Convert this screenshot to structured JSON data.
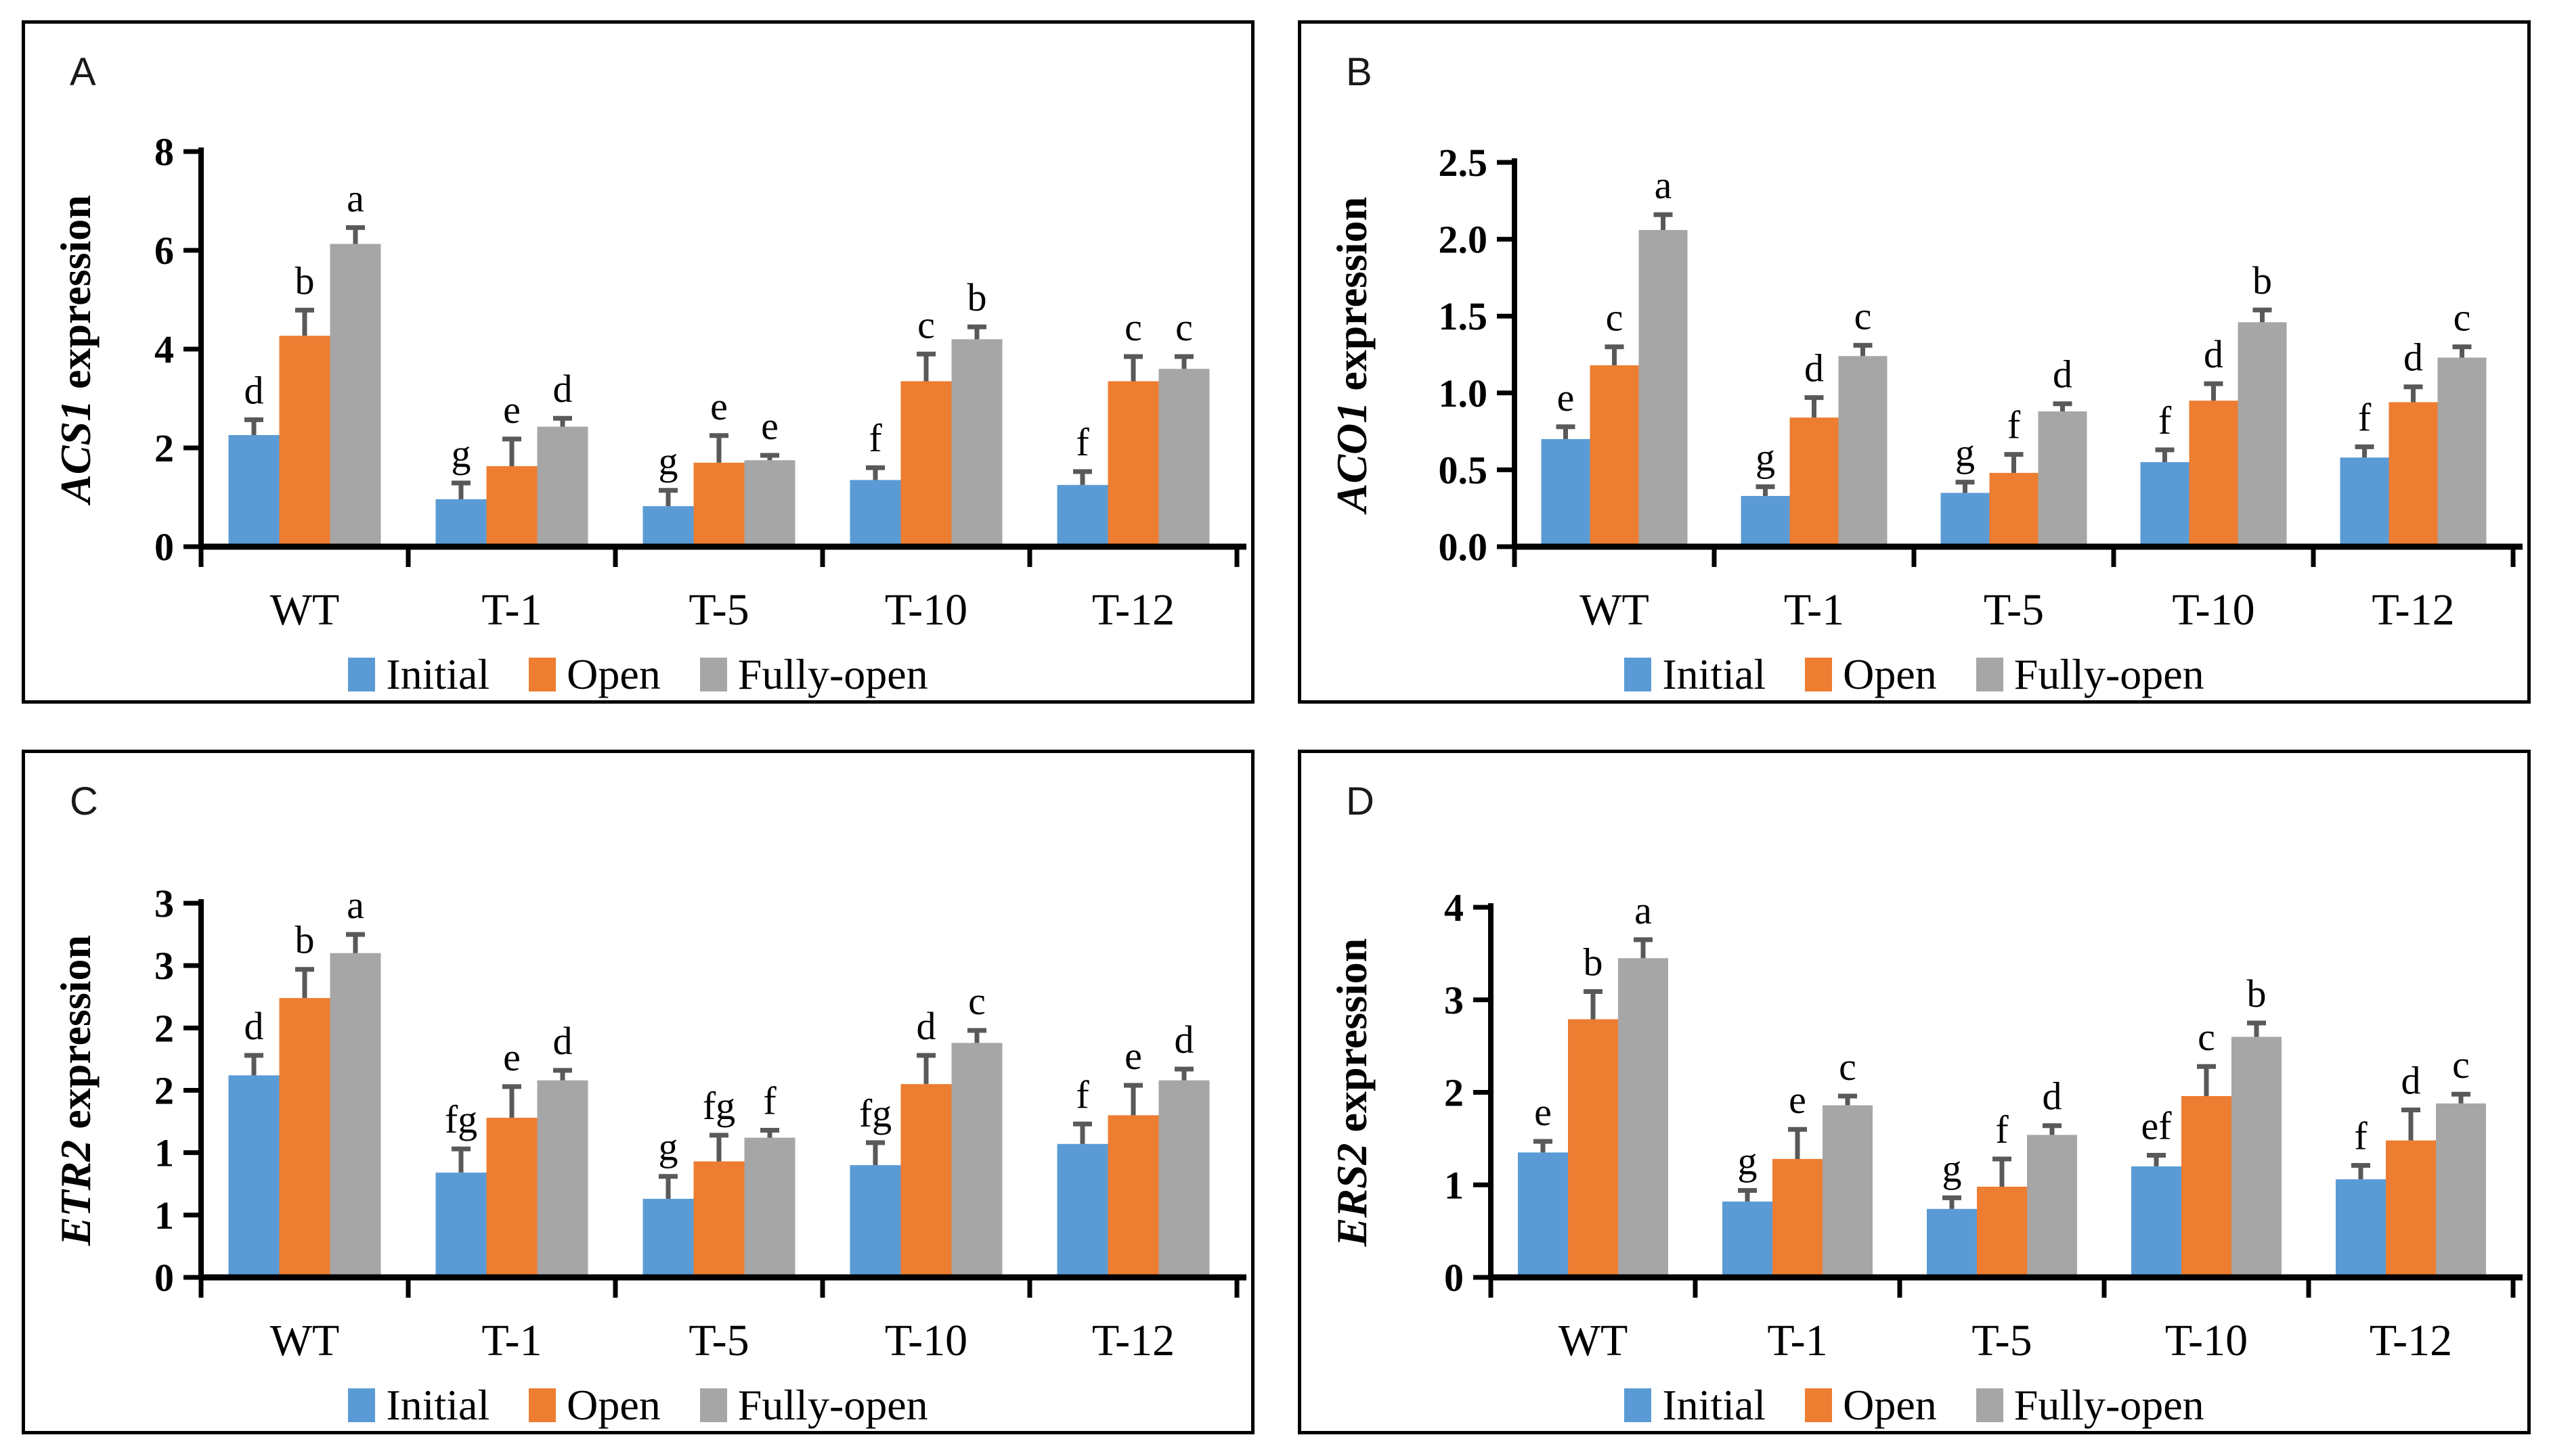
{
  "figure": {
    "description": "Four-panel grouped bar chart figure of gene expression in WT and transgenic lines",
    "panel_labels": [
      "A",
      "B",
      "C",
      "D"
    ]
  },
  "colors": {
    "initial_blue": "#5B9BD5",
    "open_orange": "#ED7D31",
    "fully_open_gray": "#A6A6A6",
    "error_bar": "#595959",
    "axis_black": "#000000"
  },
  "legend": {
    "items": [
      {
        "label": "Initial",
        "color": "#5B9BD5"
      },
      {
        "label": "Open",
        "color": "#ED7D31"
      },
      {
        "label": "Fully-open",
        "color": "#A6A6A6"
      }
    ],
    "position": "bottom"
  },
  "chart_data": [
    {
      "type": "bar",
      "panel_label": "A",
      "title": "",
      "xlabel": "",
      "ylabel_gene": "ACS1",
      "ylabel_rest": " expression",
      "categories": [
        "WT",
        "T-1",
        "T-5",
        "T-10",
        "T-12"
      ],
      "ylim": [
        0,
        8
      ],
      "grid": false,
      "legend_position": "bottom",
      "yticks": [
        {
          "value": 0,
          "label": "0"
        },
        {
          "value": 2,
          "label": "2"
        },
        {
          "value": 4,
          "label": "4"
        },
        {
          "value": 6,
          "label": "6"
        },
        {
          "value": 8,
          "label": "8"
        }
      ],
      "series": [
        {
          "name": "Initial",
          "color": "#5B9BD5",
          "values": [
            2.26,
            0.96,
            0.82,
            1.35,
            1.25
          ],
          "errors": [
            0.31,
            0.33,
            0.32,
            0.25,
            0.27
          ],
          "letters": [
            "d",
            "g",
            "g",
            "f",
            "f"
          ]
        },
        {
          "name": "Open",
          "color": "#ED7D31",
          "values": [
            4.27,
            1.63,
            1.7,
            3.35,
            3.35
          ],
          "errors": [
            0.52,
            0.55,
            0.55,
            0.55,
            0.5
          ],
          "letters": [
            "b",
            "e",
            "e",
            "c",
            "c"
          ]
        },
        {
          "name": "Fully-open",
          "color": "#A6A6A6",
          "values": [
            6.13,
            2.43,
            1.75,
            4.2,
            3.6
          ],
          "errors": [
            0.33,
            0.17,
            0.1,
            0.25,
            0.25
          ],
          "letters": [
            "a",
            "d",
            "e",
            "b",
            "c"
          ]
        }
      ]
    },
    {
      "type": "bar",
      "panel_label": "B",
      "title": "",
      "xlabel": "",
      "ylabel_gene": "ACO1",
      "ylabel_rest": " expression",
      "categories": [
        "WT",
        "T-1",
        "T-5",
        "T-10",
        "T-12"
      ],
      "ylim": [
        0,
        2.5
      ],
      "grid": false,
      "legend_position": "bottom",
      "yticks": [
        {
          "value": 0,
          "label": "0.0"
        },
        {
          "value": 0.5,
          "label": "0.5"
        },
        {
          "value": 1.0,
          "label": "1.0"
        },
        {
          "value": 1.5,
          "label": "1.5"
        },
        {
          "value": 2.0,
          "label": "2.0"
        },
        {
          "value": 2.5,
          "label": "2.5"
        }
      ],
      "series": [
        {
          "name": "Initial",
          "color": "#5B9BD5",
          "values": [
            0.7,
            0.33,
            0.35,
            0.55,
            0.58
          ],
          "errors": [
            0.08,
            0.06,
            0.07,
            0.08,
            0.07
          ],
          "letters": [
            "e",
            "g",
            "g",
            "f",
            "f"
          ]
        },
        {
          "name": "Open",
          "color": "#ED7D31",
          "values": [
            1.18,
            0.84,
            0.48,
            0.95,
            0.94
          ],
          "errors": [
            0.12,
            0.13,
            0.12,
            0.11,
            0.1
          ],
          "letters": [
            "c",
            "d",
            "f",
            "d",
            "d"
          ]
        },
        {
          "name": "Fully-open",
          "color": "#A6A6A6",
          "values": [
            2.06,
            1.24,
            0.88,
            1.46,
            1.23
          ],
          "errors": [
            0.1,
            0.07,
            0.05,
            0.08,
            0.07
          ],
          "letters": [
            "a",
            "c",
            "d",
            "b",
            "c"
          ]
        }
      ]
    },
    {
      "type": "bar",
      "panel_label": "C",
      "title": "",
      "xlabel": "",
      "ylabel_gene": "ETR2",
      "ylabel_rest": " expression",
      "categories": [
        "WT",
        "T-1",
        "T-5",
        "T-10",
        "T-12"
      ],
      "ylim": [
        0,
        3
      ],
      "grid": false,
      "legend_position": "bottom",
      "yticks": [
        {
          "value": 0,
          "label": "0"
        },
        {
          "value": 0.5,
          "label": "1"
        },
        {
          "value": 1.0,
          "label": "1"
        },
        {
          "value": 1.5,
          "label": "2"
        },
        {
          "value": 2.0,
          "label": "2"
        },
        {
          "value": 2.5,
          "label": "3"
        },
        {
          "value": 3.0,
          "label": "3"
        }
      ],
      "series": [
        {
          "name": "Initial",
          "color": "#5B9BD5",
          "values": [
            1.62,
            0.84,
            0.63,
            0.9,
            1.07
          ],
          "errors": [
            0.16,
            0.19,
            0.18,
            0.18,
            0.16
          ],
          "letters": [
            "d",
            "fg",
            "g",
            "fg",
            "f"
          ]
        },
        {
          "name": "Open",
          "color": "#ED7D31",
          "values": [
            2.24,
            1.28,
            0.93,
            1.55,
            1.3
          ],
          "errors": [
            0.23,
            0.25,
            0.21,
            0.23,
            0.24
          ],
          "letters": [
            "b",
            "e",
            "fg",
            "d",
            "e"
          ]
        },
        {
          "name": "Fully-open",
          "color": "#A6A6A6",
          "values": [
            2.6,
            1.58,
            1.12,
            1.88,
            1.58
          ],
          "errors": [
            0.15,
            0.08,
            0.06,
            0.1,
            0.09
          ],
          "letters": [
            "a",
            "d",
            "f",
            "c",
            "d"
          ]
        }
      ]
    },
    {
      "type": "bar",
      "panel_label": "D",
      "title": "",
      "xlabel": "",
      "ylabel_gene": "ERS2",
      "ylabel_rest": " expression",
      "categories": [
        "WT",
        "T-1",
        "T-5",
        "T-10",
        "T-12"
      ],
      "ylim": [
        0,
        4
      ],
      "grid": false,
      "legend_position": "bottom",
      "yticks": [
        {
          "value": 0,
          "label": "0"
        },
        {
          "value": 1,
          "label": "1"
        },
        {
          "value": 2,
          "label": "2"
        },
        {
          "value": 3,
          "label": "3"
        },
        {
          "value": 4,
          "label": "4"
        }
      ],
      "series": [
        {
          "name": "Initial",
          "color": "#5B9BD5",
          "values": [
            1.35,
            0.82,
            0.74,
            1.2,
            1.06
          ],
          "errors": [
            0.12,
            0.12,
            0.12,
            0.12,
            0.15
          ],
          "letters": [
            "e",
            "g",
            "g",
            "ef",
            "f"
          ]
        },
        {
          "name": "Open",
          "color": "#ED7D31",
          "values": [
            2.79,
            1.28,
            0.98,
            1.96,
            1.48
          ],
          "errors": [
            0.3,
            0.32,
            0.3,
            0.32,
            0.33
          ],
          "letters": [
            "b",
            "e",
            "f",
            "c",
            "d"
          ]
        },
        {
          "name": "Fully-open",
          "color": "#A6A6A6",
          "values": [
            3.45,
            1.86,
            1.54,
            2.6,
            1.88
          ],
          "errors": [
            0.2,
            0.1,
            0.1,
            0.15,
            0.1
          ],
          "letters": [
            "a",
            "c",
            "d",
            "b",
            "c"
          ]
        }
      ]
    }
  ]
}
